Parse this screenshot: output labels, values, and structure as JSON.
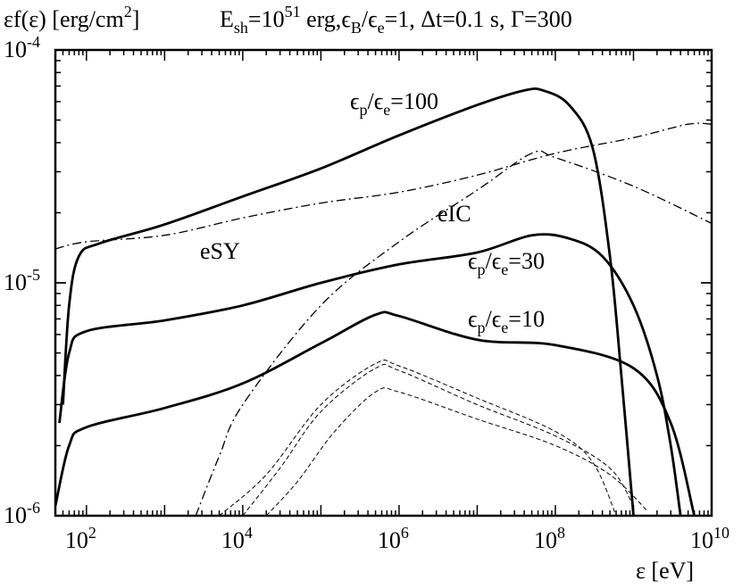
{
  "chart_data": {
    "type": "line",
    "title": {
      "ylabel_text": "εf(ε) [erg/cm",
      "ylabel_sup": "2",
      "ylabel_close": "]",
      "params_e": "E",
      "params_sub": "sh",
      "params_eq": "=10",
      "params_sup": "51",
      "params_rest1": " erg,",
      "params_epsB": "ϵ",
      "params_epsB_sub": "B",
      "params_slash": "/ϵ",
      "params_epse_sub": "e",
      "params_rest2": "=1, Δt=0.1 s, Γ=300"
    },
    "xlabel": "ε [eV]",
    "xscale": "log",
    "yscale": "log",
    "xlim": [
      40,
      10000000000
    ],
    "ylim": [
      1e-06,
      0.0001
    ],
    "x_ticks": [
      {
        "base": "10",
        "exp": "2",
        "value": 100
      },
      {
        "base": "10",
        "exp": "4",
        "value": 10000
      },
      {
        "base": "10",
        "exp": "6",
        "value": 1000000
      },
      {
        "base": "10",
        "exp": "8",
        "value": 100000000
      },
      {
        "base": "10",
        "exp": "10",
        "value": 10000000000
      }
    ],
    "y_ticks": [
      {
        "base": "10",
        "exp": "-6",
        "value": 1e-06
      },
      {
        "base": "10",
        "exp": "-5",
        "value": 1e-05
      },
      {
        "base": "10",
        "exp": "-4",
        "value": 0.0001
      }
    ],
    "annotations": {
      "r100": {
        "eps": "ϵ",
        "p": "p",
        "slash": "/ϵ",
        "e": "e",
        "val": "=100"
      },
      "r30": {
        "eps": "ϵ",
        "p": "p",
        "slash": "/ϵ",
        "e": "e",
        "val": "=30"
      },
      "r10": {
        "eps": "ϵ",
        "p": "p",
        "slash": "/ϵ",
        "e": "e",
        "val": "=10"
      },
      "eIC": "eIC",
      "eSY": "eSY"
    },
    "series": [
      {
        "style": "thick-solid",
        "points": [
          [
            50,
            3e-06
          ],
          [
            60,
            8e-06
          ],
          [
            80,
            1.3e-05
          ],
          [
            150,
            1.48e-05
          ],
          [
            1000,
            1.78e-05
          ],
          [
            10000,
            2.35e-05
          ],
          [
            100000,
            3.1e-05
          ],
          [
            1000000,
            4.3e-05
          ],
          [
            10000000,
            5.8e-05
          ],
          [
            40000000,
            6.7e-05
          ],
          [
            70000000,
            6.7e-05
          ],
          [
            150000000,
            5.8e-05
          ],
          [
            300000000,
            3.8e-05
          ],
          [
            500000000,
            1.3e-05
          ],
          [
            700000000,
            4e-06
          ],
          [
            1000000000,
            1e-06
          ]
        ]
      },
      {
        "style": "thick-solid",
        "points": [
          [
            45,
            2.5e-06
          ],
          [
            60,
            5e-06
          ],
          [
            100,
            6.2e-06
          ],
          [
            1000,
            6.9e-06
          ],
          [
            10000,
            8e-06
          ],
          [
            100000,
            1e-05
          ],
          [
            1000000,
            1.2e-05
          ],
          [
            10000000,
            1.35e-05
          ],
          [
            50000000,
            1.6e-05
          ],
          [
            150000000,
            1.55e-05
          ],
          [
            400000000,
            1.3e-05
          ],
          [
            1000000000,
            8e-06
          ],
          [
            2000000000,
            4e-06
          ],
          [
            3000000000,
            2e-06
          ],
          [
            4000000000,
            1e-06
          ]
        ]
      },
      {
        "style": "thick-solid",
        "points": [
          [
            40,
            1.1e-06
          ],
          [
            60,
            2e-06
          ],
          [
            100,
            2.4e-06
          ],
          [
            1000,
            2.9e-06
          ],
          [
            10000,
            3.7e-06
          ],
          [
            100000,
            5.5e-06
          ],
          [
            500000,
            7.3e-06
          ],
          [
            1000000,
            7.2e-06
          ],
          [
            10000000,
            5.7e-06
          ],
          [
            100000000,
            5.4e-06
          ],
          [
            1000000000,
            4.3e-06
          ],
          [
            3000000000,
            2.5e-06
          ],
          [
            6000000000,
            1e-06
          ]
        ]
      },
      {
        "style": "dash-dot",
        "points": [
          [
            40,
            1.4e-05
          ],
          [
            100,
            1.5e-05
          ],
          [
            1000,
            1.6e-05
          ],
          [
            10000,
            1.9e-05
          ],
          [
            100000,
            2.2e-05
          ],
          [
            1000000,
            2.45e-05
          ],
          [
            10000000,
            2.9e-05
          ],
          [
            100000000,
            3.6e-05
          ],
          [
            1000000000,
            4.2e-05
          ],
          [
            5000000000,
            4.8e-05
          ],
          [
            10000000000,
            4.8e-05
          ]
        ]
      },
      {
        "style": "dash-dot",
        "points": [
          [
            2500,
            1e-06
          ],
          [
            5000,
            1.8e-06
          ],
          [
            10000,
            3e-06
          ],
          [
            100000,
            8e-06
          ],
          [
            1000000,
            1.5e-05
          ],
          [
            10000000,
            2.5e-05
          ],
          [
            50000000,
            3.6e-05
          ],
          [
            100000000,
            3.45e-05
          ],
          [
            1000000000,
            2.6e-05
          ],
          [
            10000000000,
            1.8e-05
          ]
        ]
      },
      {
        "style": "dashed",
        "points": [
          [
            5000,
            1e-06
          ],
          [
            20000,
            1.5e-06
          ],
          [
            100000,
            3e-06
          ],
          [
            500000,
            4.5e-06
          ],
          [
            1000000,
            4.4e-06
          ],
          [
            10000000,
            3.2e-06
          ],
          [
            100000000,
            2.3e-06
          ],
          [
            300000000,
            1.7e-06
          ],
          [
            600000000,
            1e-06
          ]
        ]
      },
      {
        "style": "dashed",
        "points": [
          [
            10000,
            1e-06
          ],
          [
            30000,
            1.6e-06
          ],
          [
            100000,
            2.8e-06
          ],
          [
            500000,
            4.3e-06
          ],
          [
            1000000,
            4.2e-06
          ],
          [
            10000000,
            3e-06
          ],
          [
            100000000,
            2.2e-06
          ],
          [
            500000000,
            1.6e-06
          ],
          [
            1000000000,
            1.1e-06
          ]
        ]
      },
      {
        "style": "dashed",
        "points": [
          [
            20000,
            1e-06
          ],
          [
            50000,
            1.4e-06
          ],
          [
            150000,
            2.3e-06
          ],
          [
            500000,
            3.4e-06
          ],
          [
            1000000,
            3.4e-06
          ],
          [
            10000000,
            2.6e-06
          ],
          [
            100000000,
            2e-06
          ],
          [
            500000000,
            1.5e-06
          ],
          [
            1500000000,
            1.05e-06
          ]
        ]
      }
    ]
  }
}
